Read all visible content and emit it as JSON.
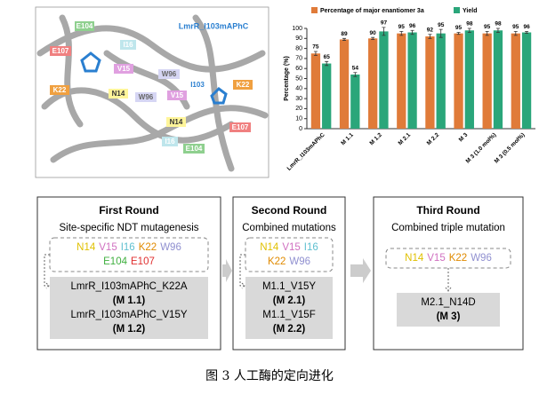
{
  "image": {
    "title": "LmrR_I103mAPhC",
    "labels": [
      "E104",
      "I16",
      "E107",
      "V15",
      "W96",
      "K22",
      "N14",
      "W96",
      "V15",
      "I103",
      "K22",
      "N14",
      "I16",
      "E107",
      "E104"
    ]
  },
  "chart_data": {
    "type": "bar",
    "ylabel": "Percentage (%)",
    "categories": [
      "LmrR_I103mAPhC",
      "M 1.1",
      "M 1.2",
      "M 2.1",
      "M 2.2",
      "M 3",
      "M 3 (1.0 mol%)",
      "M 3 (0.5 mol%)"
    ],
    "series": [
      {
        "name": "Percentage of major enantiomer 3a",
        "color": "#e07b39",
        "values": [
          75,
          89,
          90,
          95,
          92,
          95,
          95,
          95
        ],
        "errors": [
          2,
          1,
          1,
          2,
          2,
          1,
          2,
          2
        ]
      },
      {
        "name": "Yield",
        "color": "#2aa67a",
        "values": [
          65,
          54,
          97,
          96,
          95,
          98,
          98,
          96
        ],
        "errors": [
          2,
          2,
          4,
          2,
          4,
          2,
          2,
          1
        ]
      }
    ],
    "ylim": [
      0,
      100
    ],
    "yticks": [
      0,
      10,
      20,
      30,
      40,
      50,
      60,
      70,
      80,
      90,
      100
    ],
    "legend": "top"
  },
  "diagram": {
    "rounds": [
      {
        "title": "First Round",
        "subtitle": "Site-specific NDT mutagenesis",
        "residues": [
          [
            {
              "label": "N14",
              "color": "#e0c000"
            },
            {
              "label": "V15",
              "color": "#d070c0"
            },
            {
              "label": "I16",
              "color": "#60c0d0"
            },
            {
              "label": "K22",
              "color": "#e08a00"
            },
            {
              "label": "W96",
              "color": "#9090d0"
            }
          ],
          [
            {
              "label": "E104",
              "color": "#40b040"
            },
            {
              "label": "E107",
              "color": "#e03030"
            }
          ]
        ],
        "results": [
          "LmrR_I103mAPhC_K22A",
          "(M 1.1)",
          "LmrR_I103mAPhC_V15Y",
          "(M 1.2)"
        ]
      },
      {
        "title": "Second Round",
        "subtitle": "Combined mutations",
        "residues": [
          [
            {
              "label": "N14",
              "color": "#e0c000"
            },
            {
              "label": "V15",
              "color": "#d070c0"
            },
            {
              "label": "I16",
              "color": "#60c0d0"
            }
          ],
          [
            {
              "label": "K22",
              "color": "#e08a00"
            },
            {
              "label": "W96",
              "color": "#9090d0"
            }
          ]
        ],
        "results": [
          "M1.1_V15Y",
          "(M 2.1)",
          "M1.1_V15F",
          "(M 2.2)"
        ]
      },
      {
        "title": "Third Round",
        "subtitle": "Combined triple mutation",
        "residues": [
          [
            {
              "label": "N14",
              "color": "#e0c000"
            },
            {
              "label": "V15",
              "color": "#d070c0"
            },
            {
              "label": "K22",
              "color": "#e08a00"
            },
            {
              "label": "W96",
              "color": "#9090d0"
            }
          ]
        ],
        "results": [
          "M2.1_N14D",
          "(M 3)"
        ]
      }
    ]
  },
  "caption": "图 3 人工酶的定向进化"
}
